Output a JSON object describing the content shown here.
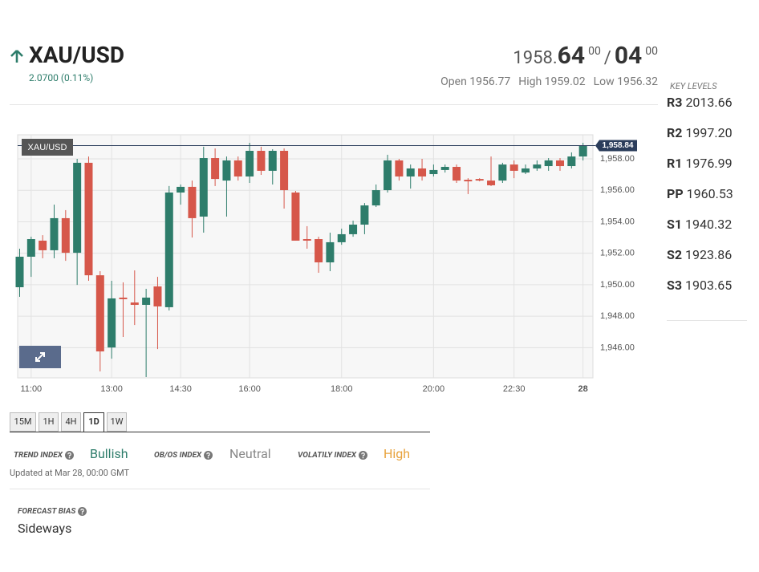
{
  "header": {
    "symbol": "XAU/USD",
    "change": "2.0700 (0.11%)",
    "price": {
      "bid_main": "1958.",
      "bid_big": "64",
      "bid_small": "00",
      "separator": "/",
      "ask_big": "04",
      "ask_small": "00"
    },
    "stats": [
      {
        "label": "Open",
        "value": "1956.77"
      },
      {
        "label": "High",
        "value": "1959.02"
      },
      {
        "label": "Low",
        "value": "1956.32"
      }
    ]
  },
  "key_levels": {
    "title": "KEY LEVELS",
    "levels": [
      {
        "name": "R3",
        "value": "2013.66"
      },
      {
        "name": "R2",
        "value": "1997.20"
      },
      {
        "name": "R1",
        "value": "1976.99"
      },
      {
        "name": "PP",
        "value": "1960.53"
      },
      {
        "name": "S1",
        "value": "1940.32"
      },
      {
        "name": "S2",
        "value": "1923.86"
      },
      {
        "name": "S3",
        "value": "1903.65"
      }
    ]
  },
  "chart_data": {
    "type": "candlestick",
    "symbol": "XAU/USD",
    "categories": [
      null,
      "11:00",
      null,
      null,
      null,
      null,
      null,
      null,
      "13:00",
      null,
      null,
      null,
      null,
      null,
      "14:30",
      null,
      null,
      null,
      null,
      null,
      "16:00",
      null,
      null,
      null,
      null,
      null,
      null,
      null,
      "18:00",
      null,
      null,
      null,
      null,
      null,
      null,
      null,
      "20:00",
      null,
      null,
      null,
      null,
      null,
      null,
      "22:30",
      null,
      null,
      null,
      null,
      null,
      "28"
    ],
    "open": [
      1949.84,
      1951.78,
      1952.8,
      1952.19,
      1954.23,
      1952.03,
      1957.75,
      1950.6,
      1946.01,
      1949.18,
      1948.87,
      1948.72,
      1949.89,
      1948.57,
      1955.86,
      1956.22,
      1954.33,
      1958.05,
      1956.62,
      1957.9,
      1956.88,
      1958.51,
      1957.24,
      1958.51,
      1955.86,
      1952.9,
      1952.9,
      1951.42,
      1952.7,
      1953.21,
      1953.82,
      1955.04,
      1956.01,
      1957.9,
      1956.88,
      1957.39,
      1957.03,
      1957.29,
      1957.49,
      1956.67,
      1956.72,
      1956.62,
      1956.62,
      1957.64,
      1957.13,
      1957.39,
      1957.54,
      1957.9,
      1957.54,
      1958.15
    ],
    "high": [
      1952.29,
      1953.05,
      1953.15,
      1955.09,
      1954.74,
      1958.0,
      1958.15,
      1950.86,
      1950.25,
      1950.15,
      1950.91,
      1949.74,
      1950.5,
      1956.27,
      1956.37,
      1956.62,
      1958.77,
      1958.66,
      1958.15,
      1958.15,
      1959.02,
      1958.77,
      1958.61,
      1958.66,
      1955.96,
      1953.72,
      1953.05,
      1953.31,
      1953.56,
      1954.07,
      1955.19,
      1956.37,
      1958.26,
      1958.0,
      1957.64,
      1958.0,
      1957.64,
      1957.64,
      1957.64,
      1956.77,
      1956.77,
      1958.15,
      1957.75,
      1957.9,
      1957.64,
      1957.9,
      1958.05,
      1958.05,
      1958.41,
      1959.02
    ],
    "low": [
      1949.23,
      1950.5,
      1951.68,
      1951.68,
      1951.52,
      1949.99,
      1950.25,
      1944.49,
      1945.3,
      1946.68,
      1947.44,
      1944.13,
      1945.91,
      1948.36,
      1955.09,
      1953.0,
      1953.31,
      1956.27,
      1954.33,
      1956.62,
      1956.47,
      1956.98,
      1956.37,
      1954.84,
      1952.8,
      1952.29,
      1950.76,
      1950.86,
      1952.54,
      1953.05,
      1953.21,
      1954.94,
      1955.86,
      1956.62,
      1956.11,
      1956.62,
      1956.88,
      1957.13,
      1956.47,
      1955.76,
      1956.57,
      1956.27,
      1956.47,
      1956.77,
      1957.03,
      1957.24,
      1957.24,
      1957.24,
      1957.39,
      1957.9
    ],
    "close": [
      1951.78,
      1952.9,
      1952.19,
      1954.23,
      1952.03,
      1957.75,
      1950.6,
      1945.76,
      1949.13,
      1949.08,
      1948.72,
      1949.18,
      1948.62,
      1955.86,
      1956.22,
      1954.23,
      1958.05,
      1956.72,
      1957.9,
      1956.88,
      1958.51,
      1957.24,
      1958.51,
      1956.01,
      1952.8,
      1952.8,
      1951.42,
      1952.7,
      1953.21,
      1953.82,
      1955.04,
      1956.01,
      1957.9,
      1956.88,
      1957.39,
      1956.88,
      1957.29,
      1957.49,
      1956.62,
      1956.57,
      1956.62,
      1956.32,
      1957.64,
      1957.24,
      1957.39,
      1957.64,
      1957.9,
      1957.54,
      1958.15,
      1958.84
    ],
    "up_color": "#2e7d6b",
    "down_color": "#d6574a",
    "ylim": [
      1944.08,
      1959.53
    ],
    "yticks": [
      {
        "value": 1946,
        "label": "1,946.00"
      },
      {
        "value": 1948,
        "label": "1,948.00"
      },
      {
        "value": 1950,
        "label": "1,950.00"
      },
      {
        "value": 1952,
        "label": "1,952.00"
      },
      {
        "value": 1954,
        "label": "1,954.00"
      },
      {
        "value": 1956,
        "label": "1,956.00"
      },
      {
        "value": 1958,
        "label": "1,958.00"
      }
    ],
    "last_price": {
      "value": 1958.84,
      "label": "1,958.84"
    },
    "grid": true
  },
  "timeframes": {
    "options": [
      "15M",
      "1H",
      "4H",
      "1D",
      "1W"
    ],
    "active_index": 3
  },
  "indices": [
    {
      "label": "TREND INDEX",
      "value": "Bullish"
    },
    {
      "label": "OB/OS INDEX",
      "value": "Neutral"
    },
    {
      "label": "VOLATILY INDEX",
      "value": "High"
    }
  ],
  "updated": "Updated at Mar 28, 00:00 GMT",
  "forecast": {
    "label": "FORECAST BIAS",
    "value": "Sideways"
  }
}
